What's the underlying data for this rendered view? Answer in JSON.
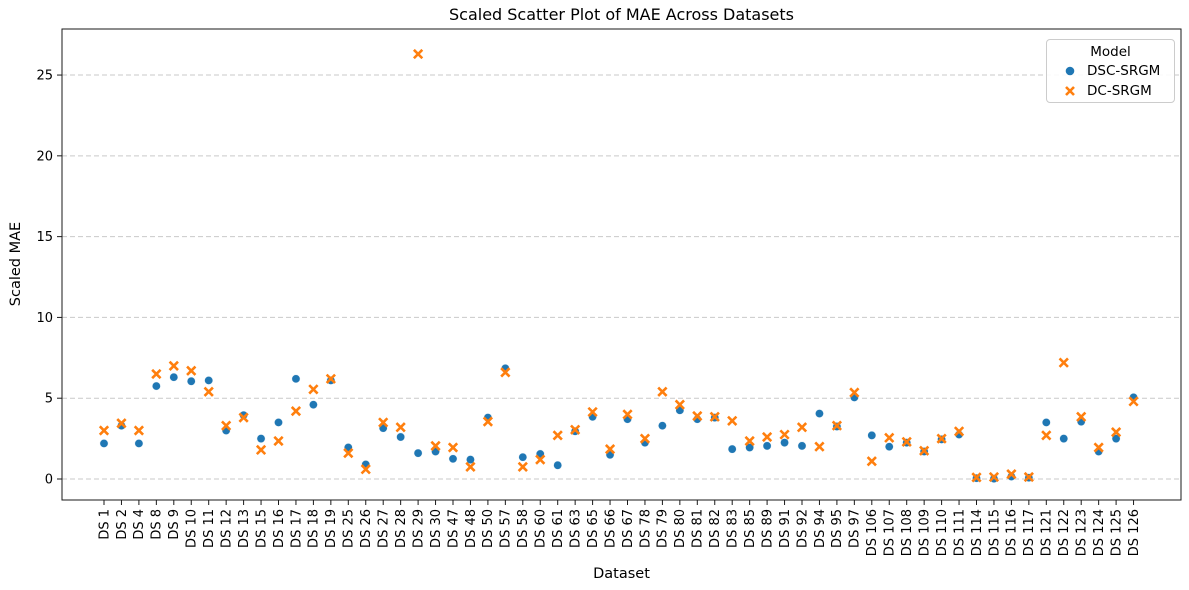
{
  "legend": {
    "title": "Model",
    "entries": [
      {
        "label": "DSC-SRGM",
        "marker": "circle",
        "color": "#1f77b4"
      },
      {
        "label": "DC-SRGM",
        "marker": "x",
        "color": "#ff7f0e"
      }
    ]
  },
  "chart_data": {
    "type": "scatter",
    "title": "Scaled Scatter Plot of MAE Across Datasets",
    "xlabel": "Dataset",
    "ylabel": "Scaled MAE",
    "grid": "horizontal-dashed",
    "grid_color": "#c9c9c9",
    "legend_position": "upper right",
    "ylim": [
      -1.3,
      27.85
    ],
    "yticks": [
      0,
      5,
      10,
      15,
      20,
      25
    ],
    "categories": [
      "DS 1",
      "DS 2",
      "DS 4",
      "DS 8",
      "DS 9",
      "DS 10",
      "DS 11",
      "DS 12",
      "DS 13",
      "DS 15",
      "DS 16",
      "DS 17",
      "DS 18",
      "DS 19",
      "DS 25",
      "DS 26",
      "DS 27",
      "DS 28",
      "DS 29",
      "DS 30",
      "DS 47",
      "DS 48",
      "DS 50",
      "DS 57",
      "DS 58",
      "DS 60",
      "DS 61",
      "DS 63",
      "DS 65",
      "DS 66",
      "DS 67",
      "DS 78",
      "DS 79",
      "DS 80",
      "DS 81",
      "DS 82",
      "DS 83",
      "DS 85",
      "DS 89",
      "DS 91",
      "DS 92",
      "DS 94",
      "DS 95",
      "DS 97",
      "DS 106",
      "DS 107",
      "DS 108",
      "DS 109",
      "DS 110",
      "DS 111",
      "DS 114",
      "DS 115",
      "DS 116",
      "DS 117",
      "DS 121",
      "DS 122",
      "DS 123",
      "DS 124",
      "DS 125",
      "DS 126"
    ],
    "series": [
      {
        "name": "DSC-SRGM",
        "marker": "circle",
        "color": "#1f77b4",
        "values": [
          2.2,
          3.3,
          2.2,
          5.75,
          6.3,
          6.05,
          6.1,
          3.0,
          3.95,
          2.5,
          3.5,
          6.2,
          4.6,
          6.1,
          1.95,
          0.9,
          3.15,
          2.6,
          1.6,
          1.7,
          1.25,
          1.2,
          3.8,
          6.85,
          1.35,
          1.55,
          0.85,
          2.95,
          3.85,
          1.5,
          3.7,
          2.25,
          3.3,
          4.25,
          3.7,
          3.8,
          1.85,
          1.95,
          2.05,
          2.25,
          2.05,
          4.05,
          3.25,
          5.05,
          2.7,
          2.0,
          2.25,
          1.7,
          2.45,
          2.75,
          0.05,
          0.02,
          0.15,
          0.08,
          3.5,
          2.5,
          3.55,
          1.7,
          2.5,
          5.05
        ]
      },
      {
        "name": "DC-SRGM",
        "marker": "x",
        "color": "#ff7f0e",
        "values": [
          3.0,
          3.45,
          3.0,
          6.5,
          7.0,
          6.7,
          5.4,
          3.3,
          3.8,
          1.8,
          2.35,
          4.2,
          5.55,
          6.2,
          1.6,
          0.6,
          3.5,
          3.2,
          26.3,
          2.05,
          1.95,
          0.75,
          3.55,
          6.6,
          0.75,
          1.2,
          2.7,
          3.05,
          4.15,
          1.85,
          4.0,
          2.5,
          5.4,
          4.6,
          3.9,
          3.85,
          3.6,
          2.35,
          2.6,
          2.75,
          3.2,
          2.0,
          3.3,
          5.35,
          1.1,
          2.55,
          2.3,
          1.75,
          2.5,
          2.95,
          0.1,
          0.12,
          0.3,
          0.12,
          2.7,
          7.2,
          3.85,
          1.95,
          2.9,
          4.8
        ]
      }
    ]
  }
}
